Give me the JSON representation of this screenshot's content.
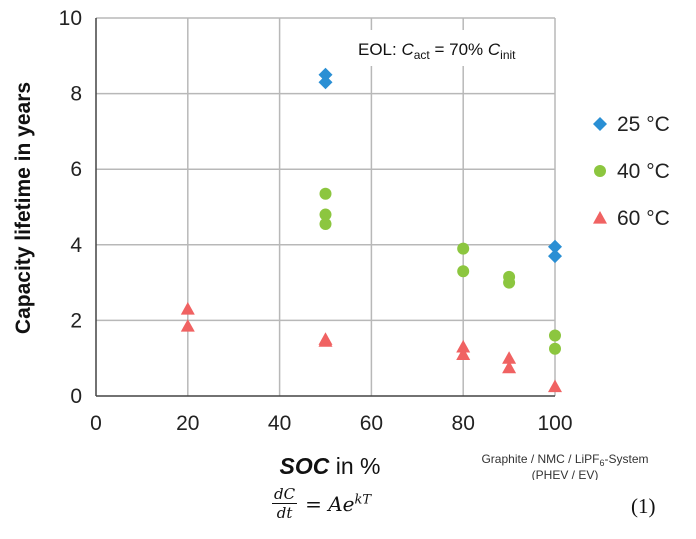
{
  "chart_data": {
    "type": "scatter",
    "xlabel_italic": "SOC",
    "xlabel_rest": " in %",
    "ylabel": "Capacity lifetime in years",
    "xlim": [
      0,
      100
    ],
    "ylim": [
      0,
      10
    ],
    "xticks": [
      0,
      20,
      40,
      60,
      80,
      100
    ],
    "yticks": [
      0,
      2,
      4,
      6,
      8,
      10
    ],
    "grid": true,
    "legend_position": "right",
    "annotation": {
      "prefix": "EOL: ",
      "c1": "C",
      "c1_sub": "act",
      "middle": " = 70% ",
      "c2": "C",
      "c2_sub": "init"
    },
    "system_note": {
      "line1_pre": "Graphite / NMC / LiPF",
      "line1_sub": "6",
      "line1_post": "-System",
      "line2": "(PHEV / EV)"
    },
    "series": [
      {
        "name": "25 °C",
        "marker": "diamond",
        "color": "#2a8fd4",
        "points": [
          [
            50,
            8.5
          ],
          [
            50,
            8.3
          ],
          [
            100,
            3.95
          ],
          [
            100,
            3.7
          ]
        ]
      },
      {
        "name": "40 °C",
        "marker": "circle",
        "color": "#8cc63f",
        "points": [
          [
            50,
            5.35
          ],
          [
            50,
            4.8
          ],
          [
            50,
            4.55
          ],
          [
            80,
            3.9
          ],
          [
            80,
            3.3
          ],
          [
            90,
            3.15
          ],
          [
            90,
            3.0
          ],
          [
            100,
            1.6
          ],
          [
            100,
            1.25
          ]
        ]
      },
      {
        "name": "60 °C",
        "marker": "triangle",
        "color": "#f06262",
        "points": [
          [
            20,
            2.3
          ],
          [
            20,
            1.85
          ],
          [
            50,
            1.5
          ],
          [
            50,
            1.45
          ],
          [
            80,
            1.3
          ],
          [
            80,
            1.1
          ],
          [
            90,
            1.0
          ],
          [
            90,
            0.75
          ],
          [
            100,
            0.25
          ]
        ]
      }
    ]
  },
  "equation": {
    "numerator": "dC",
    "denominator": "dt",
    "rhs": "= Ae",
    "exponent": "kT",
    "number": "(1)"
  }
}
